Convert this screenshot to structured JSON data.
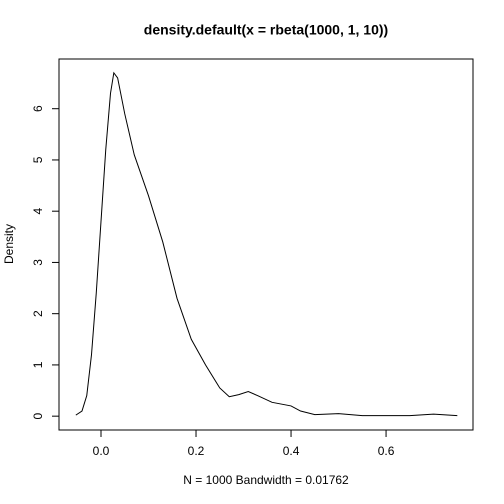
{
  "chart_data": {
    "type": "line",
    "title": "density.default(x = rbeta(1000, 1, 10))",
    "x_label": "N = 1000   Bandwidth = 0.01762",
    "y_label": "Density",
    "color": "#000000",
    "x": [
      -0.053,
      -0.04,
      -0.03,
      -0.02,
      -0.01,
      0.0,
      0.01,
      0.02,
      0.027,
      0.035,
      0.05,
      0.07,
      0.1,
      0.13,
      0.16,
      0.19,
      0.22,
      0.25,
      0.27,
      0.29,
      0.31,
      0.33,
      0.36,
      0.4,
      0.42,
      0.45,
      0.5,
      0.55,
      0.65,
      0.7,
      0.75
    ],
    "values": [
      0.02,
      0.1,
      0.4,
      1.2,
      2.4,
      3.8,
      5.2,
      6.3,
      6.7,
      6.6,
      5.9,
      5.1,
      4.3,
      3.4,
      2.3,
      1.5,
      1.0,
      0.55,
      0.38,
      0.42,
      0.48,
      0.4,
      0.27,
      0.2,
      0.1,
      0.03,
      0.05,
      0.01,
      0.01,
      0.04,
      0.01
    ],
    "xlim": [
      -0.0884,
      0.783
    ],
    "ylim": [
      -0.27,
      6.97
    ],
    "xticks": [
      {
        "value": 0,
        "label": "0.0"
      },
      {
        "value": 0.2,
        "label": "0.2"
      },
      {
        "value": 0.4,
        "label": "0.4"
      },
      {
        "value": 0.6,
        "label": "0.6"
      }
    ],
    "yticks": [
      0,
      1,
      2,
      3,
      4,
      5,
      6
    ]
  }
}
